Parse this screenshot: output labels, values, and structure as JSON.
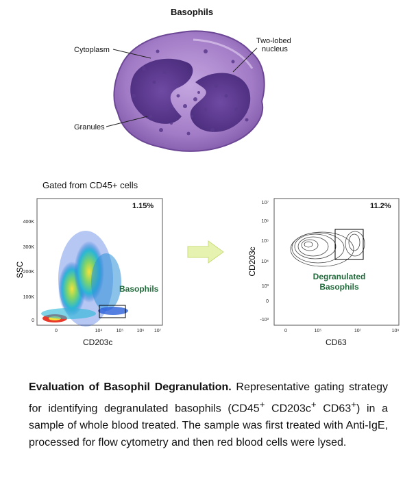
{
  "figure": {
    "title": "Basophils",
    "cell_labels": {
      "cytoplasm": "Cytoplasm",
      "nucleus_line1": "Two-lobed",
      "nucleus_line2": "nucleus",
      "granules": "Granules"
    },
    "gated_label": "Gated from CD45+ cells",
    "plot1": {
      "percent": "1.15%",
      "ylabel": "SSC",
      "xlabel": "CD203c",
      "gate_label": "Basophils",
      "y_ticks": [
        "400K",
        "300K",
        "200K",
        "100K",
        "0"
      ],
      "x_ticks": [
        "0",
        "10⁴",
        "10⁵",
        "10⁶",
        "10⁷"
      ]
    },
    "plot2": {
      "percent": "11.2%",
      "ylabel": "CD203c",
      "xlabel": "CD63",
      "gate_label_line1": "Degranulated",
      "gate_label_line2": "Basophils",
      "y_ticks": [
        "10⁷",
        "10⁶",
        "10⁵",
        "10⁴",
        "10³",
        "0",
        "-10³"
      ],
      "x_ticks": [
        "0",
        "10⁵",
        "10⁷",
        "10⁹"
      ]
    }
  },
  "caption": {
    "bold": "Evaluation of Basophil Degranulation.",
    "part1": " Representative gating strategy for identifying degranulated basophils (CD45",
    "sup1": "+",
    "part2": " CD203c",
    "sup2": "+",
    "part3": " CD63",
    "sup3": "+",
    "part4": ") in a sample of whole blood treated. The sample was first treated with Anti-IgE, processed for flow cytometry and then red blood cells were lysed."
  },
  "colors": {
    "cytoplasm": "#a77fc9",
    "nucleus": "#5a3a8c",
    "gate_text": "#1f6b3a",
    "arrow": "#e6f2b0"
  }
}
